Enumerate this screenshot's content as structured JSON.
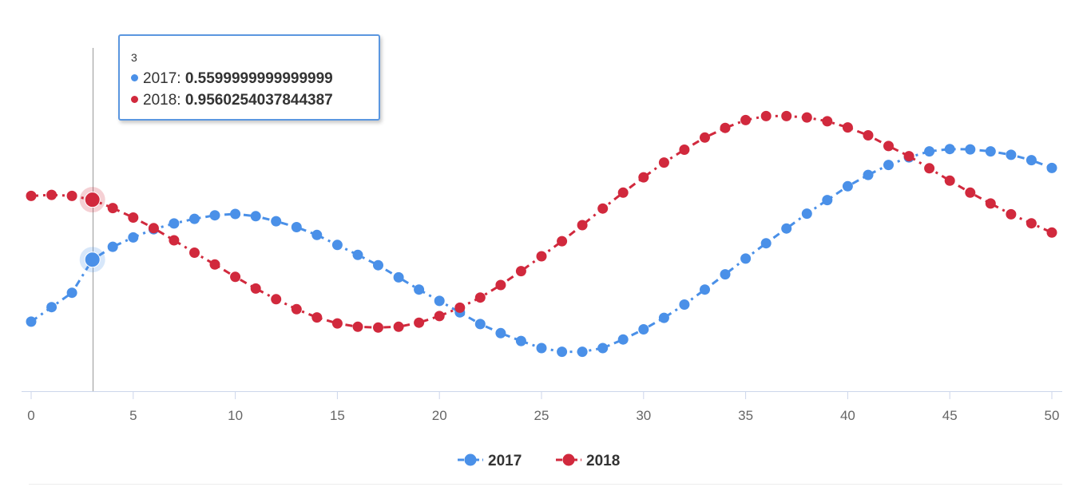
{
  "chart_data": {
    "type": "line",
    "x": [
      0,
      1,
      2,
      3,
      4,
      5,
      6,
      7,
      8,
      9,
      10,
      11,
      12,
      13,
      14,
      15,
      16,
      17,
      18,
      19,
      20,
      21,
      22,
      23,
      24,
      25,
      26,
      27,
      28,
      29,
      30,
      31,
      32,
      33,
      34,
      35,
      36,
      37,
      38,
      39,
      40,
      41,
      42,
      43,
      44,
      45,
      46,
      47,
      48,
      49,
      50
    ],
    "series": [
      {
        "name": "2017",
        "color": "#4a90e8",
        "line_style": "dash-dot",
        "values": [
          0.15,
          0.246,
          0.341,
          0.56,
          0.645,
          0.707,
          0.761,
          0.799,
          0.83,
          0.853,
          0.862,
          0.847,
          0.814,
          0.775,
          0.723,
          0.657,
          0.591,
          0.523,
          0.443,
          0.362,
          0.287,
          0.211,
          0.134,
          0.074,
          0.022,
          -0.025,
          -0.049,
          -0.049,
          -0.025,
          0.032,
          0.099,
          0.175,
          0.263,
          0.362,
          0.463,
          0.567,
          0.668,
          0.766,
          0.864,
          0.954,
          1.045,
          1.12,
          1.186,
          1.236,
          1.276,
          1.291,
          1.289,
          1.276,
          1.253,
          1.218,
          1.166
        ]
      },
      {
        "name": "2018",
        "color": "#d1293d",
        "line_style": "dash-dot",
        "values": [
          0.981,
          0.988,
          0.981,
          0.956,
          0.901,
          0.838,
          0.768,
          0.688,
          0.606,
          0.528,
          0.446,
          0.369,
          0.298,
          0.232,
          0.178,
          0.138,
          0.116,
          0.111,
          0.116,
          0.143,
          0.187,
          0.242,
          0.309,
          0.392,
          0.484,
          0.582,
          0.682,
          0.788,
          0.898,
          1.003,
          1.104,
          1.202,
          1.287,
          1.367,
          1.431,
          1.483,
          1.509,
          1.509,
          1.5,
          1.475,
          1.434,
          1.382,
          1.311,
          1.244,
          1.164,
          1.082,
          1.003,
          0.931,
          0.86,
          0.8,
          0.739
        ]
      }
    ],
    "xlim": [
      0,
      50
    ],
    "x_ticks": [
      0,
      5,
      10,
      15,
      20,
      25,
      30,
      35,
      40,
      45,
      50
    ],
    "ylim": [
      -0.31,
      1.96
    ],
    "y_gridlines": false,
    "legend_position": "bottom-center",
    "crosshair_x": 3,
    "tooltip": {
      "header": "3",
      "rows": [
        {
          "series": "2017",
          "label": "2017: ",
          "value": "0.5599999999999999",
          "color": "#4a90e8"
        },
        {
          "series": "2018",
          "label": "2018: ",
          "value": "0.9560254037844387",
          "color": "#d1293d"
        }
      ]
    }
  }
}
